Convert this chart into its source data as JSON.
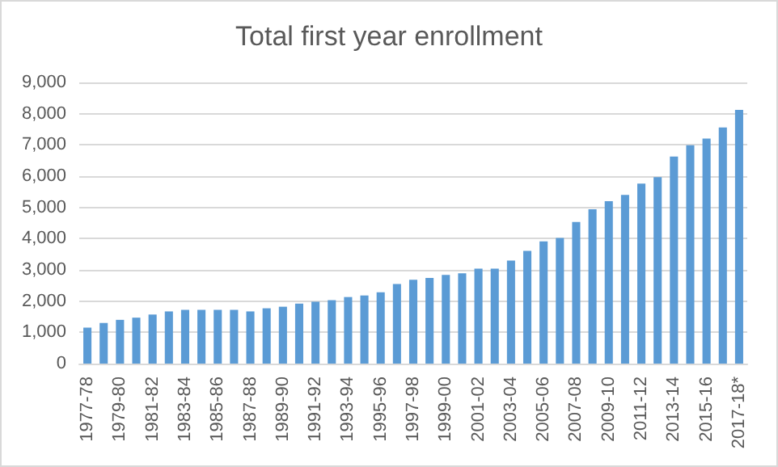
{
  "chart_data": {
    "type": "bar",
    "title": "Total first year enrollment",
    "categories": [
      "1977-78",
      null,
      "1979-80",
      null,
      "1981-82",
      null,
      "1983-84",
      null,
      "1985-86",
      null,
      "1987-88",
      null,
      "1989-90",
      null,
      "1991-92",
      null,
      "1993-94",
      null,
      "1995-96",
      null,
      "1997-98",
      null,
      "1999-00",
      null,
      "2001-02",
      null,
      "2003-04",
      null,
      "2005-06",
      null,
      "2007-08",
      null,
      "2009-10",
      null,
      "2011-12",
      null,
      "2013-14",
      null,
      "2015-16",
      null,
      "2017-18*"
    ],
    "values": [
      1150,
      1300,
      1400,
      1470,
      1570,
      1670,
      1720,
      1720,
      1720,
      1720,
      1670,
      1770,
      1820,
      1920,
      1980,
      2030,
      2130,
      2180,
      2280,
      2550,
      2680,
      2740,
      2840,
      2890,
      3040,
      3040,
      3300,
      3610,
      3910,
      4020,
      4530,
      4940,
      5200,
      5400,
      5760,
      5970,
      6630,
      6990,
      7200,
      7560,
      8120
    ],
    "color": "#5b9bd5",
    "ylim": [
      0,
      9000
    ],
    "yticks": [
      {
        "value": 0,
        "label": "0"
      },
      {
        "value": 1000,
        "label": "1,000"
      },
      {
        "value": 2000,
        "label": "2,000"
      },
      {
        "value": 3000,
        "label": "3,000"
      },
      {
        "value": 4000,
        "label": "4,000"
      },
      {
        "value": 5000,
        "label": "5,000"
      },
      {
        "value": 6000,
        "label": "6,000"
      },
      {
        "value": 7000,
        "label": "7,000"
      },
      {
        "value": 8000,
        "label": "8,000"
      },
      {
        "value": 9000,
        "label": "9,000"
      }
    ],
    "grid": "y"
  }
}
